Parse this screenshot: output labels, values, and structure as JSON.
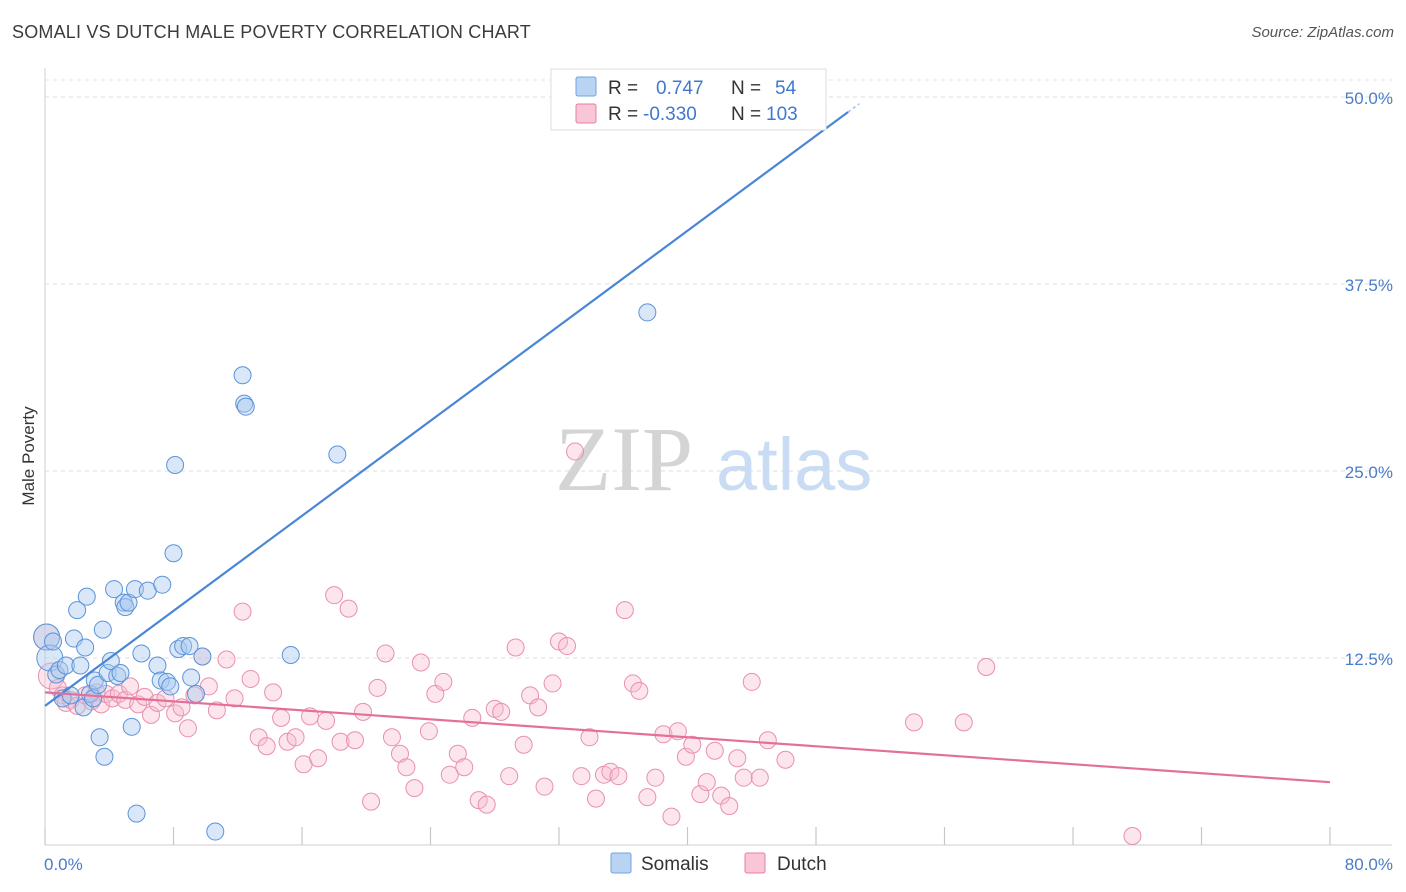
{
  "title": "SOMALI VS DUTCH MALE POVERTY CORRELATION CHART",
  "source": "Source: ZipAtlas.com",
  "watermark": {
    "zip": "ZIP",
    "atlas": "atlas"
  },
  "legend": {
    "rows": [
      {
        "r_label": "R =",
        "r_value": "0.747",
        "n_label": "N =",
        "n_value": "54",
        "color": "#6fa3e3",
        "fill": "#b9d3f3"
      },
      {
        "r_label": "R =",
        "r_value": "-0.330",
        "n_label": "N =",
        "n_value": "103",
        "color": "#e87fa3",
        "fill": "#f8c6d6"
      }
    ]
  },
  "bottom_legend": [
    {
      "label": "Somalis",
      "color": "#6fa3e3",
      "fill": "#b9d3f3"
    },
    {
      "label": "Dutch",
      "color": "#e87fa3",
      "fill": "#f8c6d6"
    }
  ],
  "chart_data": {
    "type": "scatter",
    "title": "SOMALI VS DUTCH MALE POVERTY CORRELATION CHART",
    "xlabel": "",
    "ylabel": "Male Poverty",
    "xlim": [
      0,
      80
    ],
    "ylim": [
      0,
      50
    ],
    "x_tick_labels": [
      "0.0%",
      "80.0%"
    ],
    "y_ticks": [
      12.5,
      25.0,
      37.5,
      50.0
    ],
    "y_tick_labels": [
      "12.5%",
      "25.0%",
      "37.5%",
      "50.0%"
    ],
    "grid": true,
    "legend_position": "top-center",
    "series": [
      {
        "name": "Somalis",
        "color": "#4a86d6",
        "trend": {
          "x": [
            0,
            50
          ],
          "y": [
            9.3,
            49.0
          ]
        },
        "points": [
          [
            0.1,
            13.9
          ],
          [
            0.3,
            12.5
          ],
          [
            0.5,
            13.6
          ],
          [
            0.7,
            11.4
          ],
          [
            0.9,
            11.7
          ],
          [
            1.1,
            9.8
          ],
          [
            1.3,
            12.0
          ],
          [
            1.6,
            10.0
          ],
          [
            1.8,
            13.8
          ],
          [
            2.0,
            15.7
          ],
          [
            2.2,
            12.0
          ],
          [
            2.4,
            9.2
          ],
          [
            2.5,
            13.2
          ],
          [
            2.6,
            16.6
          ],
          [
            2.8,
            10.1
          ],
          [
            3.0,
            9.8
          ],
          [
            3.1,
            11.0
          ],
          [
            3.3,
            10.7
          ],
          [
            3.4,
            7.2
          ],
          [
            3.6,
            14.4
          ],
          [
            3.7,
            5.9
          ],
          [
            3.9,
            11.5
          ],
          [
            4.1,
            12.3
          ],
          [
            4.3,
            17.1
          ],
          [
            4.5,
            11.3
          ],
          [
            4.7,
            11.5
          ],
          [
            4.9,
            16.2
          ],
          [
            5.0,
            15.9
          ],
          [
            5.2,
            16.2
          ],
          [
            5.4,
            7.9
          ],
          [
            5.6,
            17.1
          ],
          [
            5.7,
            2.1
          ],
          [
            6.0,
            12.8
          ],
          [
            6.4,
            17.0
          ],
          [
            7.0,
            12.0
          ],
          [
            7.2,
            11.0
          ],
          [
            7.3,
            17.4
          ],
          [
            7.6,
            10.9
          ],
          [
            7.8,
            10.6
          ],
          [
            8.0,
            19.5
          ],
          [
            8.1,
            25.4
          ],
          [
            8.3,
            13.1
          ],
          [
            8.6,
            13.3
          ],
          [
            9.0,
            13.3
          ],
          [
            9.1,
            11.2
          ],
          [
            9.4,
            10.1
          ],
          [
            9.8,
            12.6
          ],
          [
            10.6,
            0.9
          ],
          [
            12.3,
            31.4
          ],
          [
            12.4,
            29.5
          ],
          [
            12.5,
            29.3
          ],
          [
            15.3,
            12.7
          ],
          [
            18.2,
            26.1
          ],
          [
            37.5,
            35.6
          ],
          [
            41.8,
            49.4
          ]
        ]
      },
      {
        "name": "Dutch",
        "color": "#e2709b",
        "trend": {
          "x": [
            0,
            80
          ],
          "y": [
            10.2,
            4.2
          ]
        },
        "points": [
          [
            0.1,
            13.9
          ],
          [
            0.4,
            11.3
          ],
          [
            0.8,
            10.5
          ],
          [
            1.1,
            10.0
          ],
          [
            1.3,
            9.5
          ],
          [
            1.6,
            9.7
          ],
          [
            2.0,
            9.3
          ],
          [
            2.5,
            10.0
          ],
          [
            2.9,
            9.6
          ],
          [
            3.2,
            10.2
          ],
          [
            3.5,
            9.4
          ],
          [
            3.8,
            10.1
          ],
          [
            4.2,
            9.8
          ],
          [
            4.6,
            10.1
          ],
          [
            5.0,
            9.7
          ],
          [
            5.3,
            10.6
          ],
          [
            5.8,
            9.4
          ],
          [
            6.2,
            9.9
          ],
          [
            6.6,
            8.7
          ],
          [
            7.0,
            9.5
          ],
          [
            7.5,
            9.8
          ],
          [
            8.1,
            8.8
          ],
          [
            8.5,
            9.2
          ],
          [
            8.9,
            7.8
          ],
          [
            9.3,
            10.0
          ],
          [
            9.8,
            12.6
          ],
          [
            10.2,
            10.6
          ],
          [
            10.7,
            9.0
          ],
          [
            11.3,
            12.4
          ],
          [
            11.8,
            9.8
          ],
          [
            12.3,
            15.6
          ],
          [
            12.8,
            11.1
          ],
          [
            13.3,
            7.2
          ],
          [
            13.8,
            6.6
          ],
          [
            14.2,
            10.2
          ],
          [
            14.7,
            8.5
          ],
          [
            15.1,
            6.9
          ],
          [
            15.6,
            7.2
          ],
          [
            16.1,
            5.4
          ],
          [
            16.5,
            8.6
          ],
          [
            17.0,
            5.8
          ],
          [
            17.5,
            8.3
          ],
          [
            18.0,
            16.7
          ],
          [
            18.4,
            6.9
          ],
          [
            18.9,
            15.8
          ],
          [
            19.3,
            7.0
          ],
          [
            19.8,
            8.9
          ],
          [
            20.3,
            2.9
          ],
          [
            20.7,
            10.5
          ],
          [
            21.2,
            12.8
          ],
          [
            21.6,
            7.2
          ],
          [
            22.1,
            6.1
          ],
          [
            22.5,
            5.2
          ],
          [
            23.0,
            3.8
          ],
          [
            23.4,
            12.2
          ],
          [
            23.9,
            7.6
          ],
          [
            24.3,
            10.1
          ],
          [
            24.8,
            10.9
          ],
          [
            25.2,
            4.7
          ],
          [
            25.7,
            6.1
          ],
          [
            26.1,
            5.2
          ],
          [
            26.6,
            8.5
          ],
          [
            27.0,
            3.0
          ],
          [
            27.5,
            2.7
          ],
          [
            28.0,
            9.1
          ],
          [
            28.4,
            8.9
          ],
          [
            28.9,
            4.6
          ],
          [
            29.3,
            13.2
          ],
          [
            29.8,
            6.7
          ],
          [
            30.2,
            10.0
          ],
          [
            30.7,
            9.2
          ],
          [
            31.1,
            3.9
          ],
          [
            31.6,
            10.8
          ],
          [
            32.0,
            13.6
          ],
          [
            32.5,
            13.3
          ],
          [
            33.0,
            26.3
          ],
          [
            33.4,
            4.6
          ],
          [
            33.9,
            7.2
          ],
          [
            34.3,
            3.1
          ],
          [
            34.8,
            4.7
          ],
          [
            35.2,
            4.9
          ],
          [
            35.7,
            4.6
          ],
          [
            36.1,
            15.7
          ],
          [
            36.6,
            10.8
          ],
          [
            37.0,
            10.3
          ],
          [
            37.5,
            3.2
          ],
          [
            38.0,
            4.5
          ],
          [
            38.5,
            7.4
          ],
          [
            39.0,
            1.9
          ],
          [
            39.4,
            7.6
          ],
          [
            39.9,
            5.9
          ],
          [
            40.3,
            6.7
          ],
          [
            40.8,
            3.4
          ],
          [
            41.2,
            4.2
          ],
          [
            41.7,
            6.3
          ],
          [
            42.1,
            3.3
          ],
          [
            42.6,
            2.6
          ],
          [
            43.1,
            5.8
          ],
          [
            43.5,
            4.5
          ],
          [
            44.0,
            10.9
          ],
          [
            44.5,
            4.5
          ],
          [
            45.0,
            7.0
          ],
          [
            46.1,
            5.7
          ],
          [
            54.1,
            8.2
          ],
          [
            57.2,
            8.2
          ],
          [
            58.6,
            11.9
          ],
          [
            67.7,
            0.6
          ]
        ]
      }
    ]
  }
}
